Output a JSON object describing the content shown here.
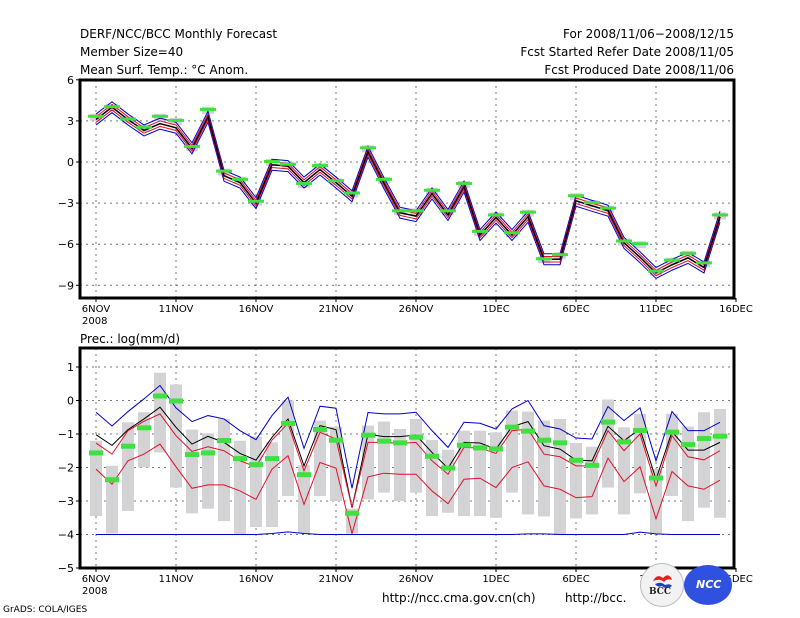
{
  "header": {
    "left_lines": [
      "DERF/NCC/BCC Monthly Forecast",
      "Member Size=40",
      "Mean Surf. Temp.: °C Anom."
    ],
    "right_lines": [
      "For 2008/11/06−2008/12/15",
      "Fcst Started Refer Date 2008/11/05",
      "Fcst Produced Date 2008/11/06"
    ]
  },
  "footer": {
    "credit": "GrADS: COLA/IGES",
    "url_ncc": "http://ncc.cma.gov.cn(ch)",
    "url_bcc": "http://bcc.",
    "logo_bcc_text": "BCC",
    "logo_ncc_text": "NCC"
  },
  "colors": {
    "ensemble_mean": "#000000",
    "std_band": "#e0102a",
    "max_min": "#0000cc",
    "observed": "#40e040",
    "member_range": "#d3d3d6"
  },
  "chart_data": [
    {
      "type": "line",
      "title": "Mean Surf. Temp.: °C Anom.",
      "xlabel": "",
      "ylabel": "",
      "x_tick_labels": [
        "6NOV",
        "11NOV",
        "16NOV",
        "21NOV",
        "26NOV",
        "1DEC",
        "6DEC",
        "11DEC",
        "16DEC"
      ],
      "x_year_label": "2008",
      "y_ticks": [
        6,
        3,
        0,
        -3,
        -6,
        -9
      ],
      "ylim": [
        -10,
        6
      ],
      "grid": true,
      "x": [
        "11-06",
        "11-07",
        "11-08",
        "11-09",
        "11-10",
        "11-11",
        "11-12",
        "11-13",
        "11-14",
        "11-15",
        "11-16",
        "11-17",
        "11-18",
        "11-19",
        "11-20",
        "11-21",
        "11-22",
        "11-23",
        "11-24",
        "11-25",
        "11-26",
        "11-27",
        "11-28",
        "11-29",
        "11-30",
        "12-01",
        "12-02",
        "12-03",
        "12-04",
        "12-05",
        "12-06",
        "12-07",
        "12-08",
        "12-09",
        "12-10",
        "12-11",
        "12-12",
        "12-13",
        "12-14",
        "12-15"
      ],
      "series": [
        {
          "name": "ensemble mean",
          "values": [
            3.1,
            4.0,
            3.1,
            2.3,
            2.8,
            2.5,
            1.0,
            3.3,
            -1.0,
            -1.5,
            -3.0,
            -0.2,
            -0.3,
            -1.5,
            -0.55,
            -1.5,
            -2.5,
            0.75,
            -1.55,
            -3.7,
            -3.95,
            -2.3,
            -3.87,
            -1.8,
            -5.33,
            -4.05,
            -5.33,
            -4.0,
            -7.1,
            -7.1,
            -2.83,
            -3.2,
            -3.55,
            -5.9,
            -6.95,
            -8.1,
            -7.5,
            -7.0,
            -7.7,
            -4.0
          ]
        },
        {
          "name": "observed",
          "values": [
            3.3,
            4.0,
            3.1,
            2.5,
            3.3,
            3.0,
            1.1,
            3.8,
            -0.7,
            -1.3,
            -2.9,
            0.0,
            -0.2,
            -1.6,
            -0.3,
            -1.4,
            -2.3,
            1.0,
            -1.3,
            -3.6,
            -3.6,
            -2.1,
            -3.6,
            -1.6,
            -5.1,
            -3.9,
            -5.2,
            -3.7,
            -7.1,
            -6.8,
            -2.5,
            -3.0,
            -3.4,
            -5.8,
            -6.0,
            -8.0,
            -7.2,
            -6.7,
            -7.4,
            -3.9
          ]
        }
      ],
      "band_offsets": {
        "red": 0.2,
        "blue": 0.4
      }
    },
    {
      "type": "line",
      "title": "Prec.: log(mm/d)",
      "xlabel": "",
      "ylabel": "",
      "x_tick_labels": [
        "6NOV",
        "11NOV",
        "16NOV",
        "21NOV",
        "26NOV",
        "1DEC",
        "6DEC",
        "11DEC",
        "16DEC"
      ],
      "x_year_label": "2008",
      "y_ticks": [
        1,
        0,
        -1,
        -2,
        -3,
        -4,
        -5
      ],
      "ylim": [
        -5,
        1.5
      ],
      "grid": true,
      "x": [
        "11-06",
        "11-07",
        "11-08",
        "11-09",
        "11-10",
        "11-11",
        "11-12",
        "11-13",
        "11-14",
        "11-15",
        "11-16",
        "11-17",
        "11-18",
        "11-19",
        "11-20",
        "11-21",
        "11-22",
        "11-23",
        "11-24",
        "11-25",
        "11-26",
        "11-27",
        "11-28",
        "11-29",
        "11-30",
        "12-01",
        "12-02",
        "12-03",
        "12-04",
        "12-05",
        "12-06",
        "12-07",
        "12-08",
        "12-09",
        "12-10",
        "12-11",
        "12-12",
        "12-13",
        "12-14",
        "12-15"
      ],
      "series": [
        {
          "name": "max",
          "color_key": "max_min",
          "values": [
            -0.35,
            -0.76,
            -0.33,
            0.05,
            0.45,
            -0.22,
            -0.63,
            -0.45,
            -0.55,
            -0.9,
            -1.17,
            -0.45,
            0.1,
            -1.43,
            -0.17,
            -0.23,
            -2.62,
            -0.36,
            -0.4,
            -0.4,
            -0.35,
            -0.9,
            -1.4,
            -0.65,
            -0.68,
            -0.85,
            -0.25,
            0.0,
            -0.75,
            -0.85,
            -1.12,
            -1.15,
            -0.18,
            -0.6,
            -0.22,
            -1.8,
            -0.33,
            -0.9,
            -0.9,
            -0.65
          ]
        },
        {
          "name": "mean",
          "color_key": "ensemble_mean",
          "values": [
            -1.02,
            -1.34,
            -0.87,
            -0.55,
            -0.2,
            -0.8,
            -1.3,
            -1.07,
            -1.25,
            -1.58,
            -1.78,
            -1.1,
            -0.55,
            -1.95,
            -0.75,
            -0.87,
            -3.2,
            -1.0,
            -1.08,
            -1.08,
            -1.03,
            -1.55,
            -2.02,
            -1.25,
            -1.27,
            -1.45,
            -0.78,
            -0.63,
            -1.35,
            -1.45,
            -1.78,
            -1.8,
            -0.77,
            -1.2,
            -0.85,
            -2.35,
            -0.93,
            -1.48,
            -1.48,
            -1.25
          ]
        },
        {
          "name": "mean+std",
          "color_key": "std_band",
          "values": [
            -1.27,
            -1.6,
            -0.9,
            -0.62,
            -0.4,
            -1.05,
            -1.52,
            -1.38,
            -1.5,
            -1.8,
            -1.98,
            -1.18,
            -0.68,
            -2.1,
            -0.95,
            -1.15,
            -3.2,
            -1.25,
            -1.25,
            -1.28,
            -1.25,
            -1.8,
            -2.2,
            -1.4,
            -1.42,
            -1.58,
            -0.9,
            -0.86,
            -1.6,
            -1.68,
            -1.95,
            -1.95,
            -0.9,
            -1.5,
            -1.0,
            -2.55,
            -1.05,
            -1.68,
            -1.77,
            -1.5
          ]
        },
        {
          "name": "mean-std",
          "color_key": "std_band",
          "values": [
            -2.05,
            -2.5,
            -1.8,
            -1.6,
            -1.3,
            -1.98,
            -2.62,
            -2.52,
            -2.52,
            -2.7,
            -2.95,
            -2.05,
            -1.65,
            -3.1,
            -1.85,
            -2.02,
            -3.97,
            -2.28,
            -2.17,
            -2.2,
            -2.2,
            -2.7,
            -3.08,
            -2.35,
            -2.32,
            -2.6,
            -2.0,
            -1.83,
            -2.55,
            -2.65,
            -2.9,
            -2.87,
            -1.72,
            -2.42,
            -1.98,
            -3.53,
            -2.12,
            -2.55,
            -2.65,
            -2.38
          ]
        },
        {
          "name": "min",
          "color_key": "max_min",
          "values": [
            -4,
            -4,
            -4,
            -4,
            -4,
            -4,
            -4,
            -4,
            -4,
            -4,
            -4,
            -3.97,
            -3.92,
            -3.97,
            -4,
            -4,
            -4,
            -4,
            -4,
            -4,
            -4,
            -4,
            -4,
            -4,
            -4,
            -4,
            -4,
            -3.98,
            -3.98,
            -4,
            -4,
            -4,
            -4,
            -4,
            -3.93,
            -3.98,
            -4,
            -4,
            -4,
            -4
          ]
        },
        {
          "name": "observed",
          "color_key": "observed",
          "values": [
            -1.55,
            -2.35,
            -1.35,
            -0.8,
            0.15,
            0.0,
            -1.6,
            -1.55,
            -1.18,
            -1.72,
            -1.9,
            -1.72,
            -0.67,
            -2.2,
            -0.85,
            -1.17,
            -3.35,
            -1.02,
            -1.2,
            -1.25,
            -1.08,
            -1.65,
            -2.0,
            -1.32,
            -1.4,
            -1.43,
            -0.78,
            -0.9,
            -1.17,
            -1.25,
            -1.77,
            -1.92,
            -0.63,
            -1.22,
            -0.88,
            -2.3,
            -0.93,
            -1.3,
            -1.12,
            -1.05
          ]
        }
      ],
      "member_range": {
        "top": [
          -1.2,
          -1.95,
          -0.65,
          -0.35,
          0.83,
          0.48,
          -0.87,
          -0.98,
          -0.55,
          -1.2,
          -1.08,
          -1.25,
          0.0,
          -1.93,
          -0.6,
          -0.78,
          -3.23,
          -0.75,
          -0.63,
          -0.85,
          -0.55,
          -1.18,
          -1.47,
          -0.9,
          -0.9,
          -0.95,
          -0.3,
          -0.33,
          -0.6,
          -0.55,
          -1.27,
          -1.38,
          0.03,
          -0.8,
          -0.4,
          -2.05,
          -0.4,
          -0.78,
          -0.35,
          -0.25
        ],
        "bottom": [
          -3.45,
          -3.97,
          -3.3,
          -2.0,
          -1.55,
          -2.6,
          -3.37,
          -3.23,
          -3.6,
          -4.0,
          -3.78,
          -3.78,
          -2.85,
          -3.97,
          -2.85,
          -3.0,
          -3.97,
          -2.95,
          -2.75,
          -3.0,
          -2.75,
          -3.45,
          -3.35,
          -3.45,
          -3.45,
          -3.5,
          -2.75,
          -3.4,
          -3.46,
          -4.0,
          -3.52,
          -3.4,
          -2.6,
          -3.4,
          -2.77,
          -3.97,
          -2.85,
          -3.6,
          -3.2,
          -3.5
        ]
      }
    }
  ]
}
